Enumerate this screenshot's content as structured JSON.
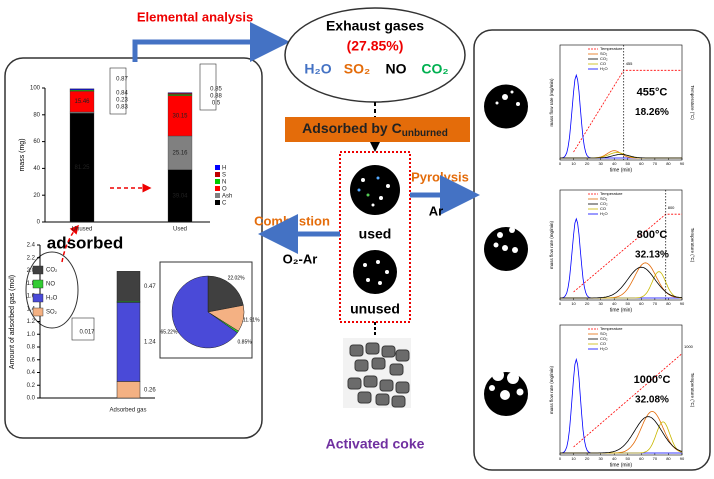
{
  "labels": {
    "elemental_analysis": "Elemental analysis",
    "adsorbed": "adsorbed",
    "used": "used",
    "unused": "unused",
    "activated_coke": "Activated coke",
    "combustion": "Combustion",
    "combustion_gas": "O₂-Ar",
    "pyrolysis": "Pyrolysis",
    "pyrolysis_gas": "Ar",
    "adsorbed_by": "Adsorbed by C",
    "adsorbed_by_sub": "unburned"
  },
  "exhaust": {
    "title": "Exhaust gases",
    "percent": "(27.85%)",
    "gases": [
      {
        "name": "H₂O",
        "color": "#4472c4"
      },
      {
        "name": "SO₂",
        "color": "#e46c0a"
      },
      {
        "name": "NO",
        "color": "#000000"
      },
      {
        "name": "CO₂",
        "color": "#00b050"
      }
    ]
  },
  "mass_chart": {
    "y_label": "mass (mg)",
    "categories": [
      "Unused",
      "Used"
    ],
    "ylim": [
      0,
      100
    ],
    "yticks": [
      0,
      20,
      40,
      60,
      80,
      100
    ],
    "series": [
      {
        "name": "C",
        "color": "#000000",
        "values": [
          81.25,
          39.04
        ]
      },
      {
        "name": "Ash",
        "color": "#808080",
        "values": [
          0.87,
          25.16
        ]
      },
      {
        "name": "O",
        "color": "#ff0000",
        "values": [
          15.46,
          30.15
        ]
      },
      {
        "name": "N",
        "color": "#00cc00",
        "values": [
          0.84,
          0.85
        ]
      },
      {
        "name": "S",
        "color": "#c00000",
        "values": [
          0.23,
          0.88
        ]
      },
      {
        "name": "H",
        "color": "#0000ff",
        "values": [
          0.83,
          0.5
        ]
      }
    ]
  },
  "gas_chart": {
    "y_label": "Amount of adsorbed gas (mol)",
    "x_label": "Adsorbed gas",
    "ylim": [
      0,
      2.4
    ],
    "yticks": [
      {
        "value": 0,
        "label": "0.0"
      },
      {
        "value": 0.2,
        "label": "0.2"
      },
      {
        "value": 0.4,
        "label": "0.4"
      },
      {
        "value": 0.6,
        "label": "0.6"
      },
      {
        "value": 0.8,
        "label": "0.8"
      },
      {
        "value": 1,
        "label": "1.0"
      },
      {
        "value": 1.2,
        "label": "1.2"
      },
      {
        "value": 1.4,
        "label": "1.4"
      },
      {
        "value": 1.6,
        "label": "1.6"
      },
      {
        "value": 1.8,
        "label": "1.8"
      },
      {
        "value": 2,
        "label": "2.0"
      },
      {
        "value": 2.2,
        "label": "2.2"
      },
      {
        "value": 2.4,
        "label": "2.4"
      }
    ],
    "series": [
      {
        "name": "SO₂",
        "color": "#f4b183",
        "values": [
          0.26
        ]
      },
      {
        "name": "H₂O",
        "color": "#4a4ad8",
        "values": [
          1.24
        ]
      },
      {
        "name": "NO",
        "color": "#33cc33",
        "values": [
          0.017
        ]
      },
      {
        "name": "CO₂",
        "color": "#404040",
        "values": [
          0.47
        ]
      }
    ]
  },
  "pie": {
    "values": [
      22.02,
      11.91,
      0.85,
      65.22
    ],
    "value_labels": [
      "22.02%",
      "11.91%",
      "0.85%",
      "65.22%"
    ],
    "colors": [
      "#404040",
      "#f4b183",
      "#33cc33",
      "#4a4ad8"
    ]
  },
  "tpd_charts": [
    {
      "temperature": "455°C",
      "percent": "18.26%",
      "marker": "455"
    },
    {
      "temperature": "800°C",
      "percent": "32.13%",
      "marker": "800"
    },
    {
      "temperature": "1000°C",
      "percent": "32.08%",
      "marker": "1000"
    }
  ],
  "tpd_common": {
    "y_label": "mass flow rate (mg/min)",
    "y2_label": "Temperature (°C)",
    "x_label": "time (min)",
    "legend": [
      {
        "name": "Temperature",
        "color": "#ff0000"
      },
      {
        "name": "SO₂",
        "color": "#e46c0a"
      },
      {
        "name": "CO₂",
        "color": "#000000"
      },
      {
        "name": "CO",
        "color": "#c9b800"
      },
      {
        "name": "H₂O",
        "color": "#0000ff"
      }
    ],
    "xticks": [
      0,
      10,
      20,
      30,
      40,
      50,
      60,
      70,
      80,
      90
    ]
  }
}
